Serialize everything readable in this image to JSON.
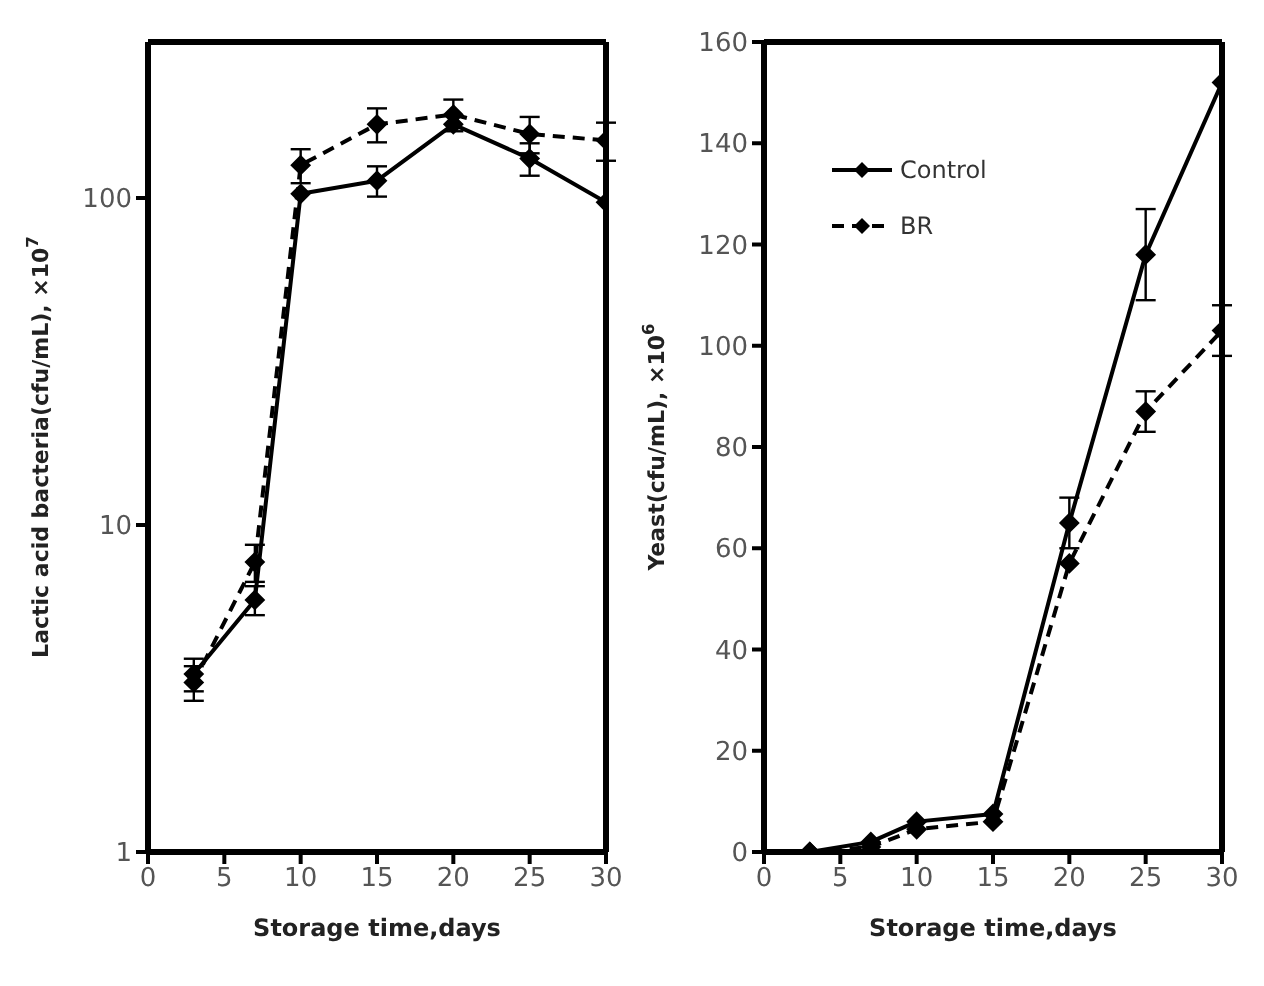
{
  "chart_data": [
    {
      "type": "line",
      "xlabel": "Storage time,days",
      "ylabel": "Lactic acid bacteria(cfu/mL), ×10$^{7}$",
      "x": [
        3,
        7,
        10,
        15,
        20,
        25,
        30
      ],
      "log": "y",
      "xlim": [
        0,
        30
      ],
      "xticks": [
        0,
        5,
        10,
        15,
        20,
        25,
        30
      ],
      "ylim": [
        1,
        300
      ],
      "yticks": [
        1,
        10,
        100
      ],
      "grid": false,
      "legend": false,
      "marker": "diamond",
      "series": [
        {
          "color": "#000000",
          "line_style": "solid",
          "values": [
            3.5,
            5.9,
            103,
            113,
            168,
            132,
            97
          ],
          "errors": [
            0.4,
            0.6,
            null,
            12,
            null,
            15,
            null
          ]
        },
        {
          "color": "#000000",
          "line_style": "dashed",
          "values": [
            3.3,
            7.7,
            126,
            168,
            180,
            157,
            150
          ],
          "errors": [
            0.4,
            1,
            15,
            20,
            20,
            20,
            20
          ]
        }
      ]
    },
    {
      "type": "line",
      "xlabel": "Storage time,days",
      "ylabel": "Yeast(cfu/mL), ×10$^{6}$",
      "x": [
        3,
        7,
        10,
        15,
        20,
        25,
        30
      ],
      "xlim": [
        0,
        30
      ],
      "xticks": [
        0,
        5,
        10,
        15,
        20,
        25,
        30
      ],
      "ylim": [
        0,
        160
      ],
      "yticks": [
        0,
        20,
        40,
        60,
        80,
        100,
        120,
        140,
        160
      ],
      "grid": false,
      "legend": "top left",
      "marker": "diamond",
      "series": [
        {
          "name": "Control",
          "color": "#000000",
          "line_style": "solid",
          "values": [
            0,
            2,
            6,
            7.5,
            65,
            118,
            152
          ],
          "errors": [
            null,
            null,
            null,
            null,
            5,
            9,
            null
          ]
        },
        {
          "name": "BR",
          "color": "#000000",
          "line_style": "dashed",
          "values": [
            0,
            1,
            4.5,
            6,
            57,
            87,
            103
          ],
          "errors": [
            null,
            null,
            null,
            null,
            null,
            4,
            5
          ]
        }
      ]
    }
  ]
}
